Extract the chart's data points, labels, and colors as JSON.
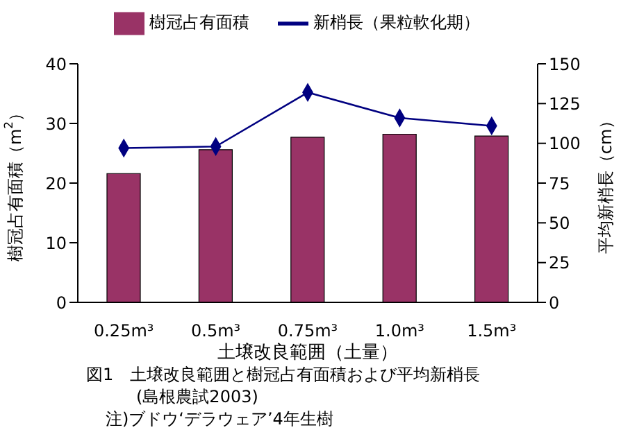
{
  "chart_data": {
    "type": "bar",
    "categories": [
      "0.25m³",
      "0.5m³",
      "0.75m³",
      "1.0m³",
      "1.5m³"
    ],
    "series": [
      {
        "name": "樹冠占有面積",
        "color": "#993366",
        "values": [
          21.6,
          25.6,
          27.7,
          28.2,
          27.9
        ]
      },
      {
        "name": "新梢長（果粒軟化期）",
        "type": "line",
        "axis": "y2",
        "color": "#000080",
        "values": [
          97,
          98,
          132,
          116,
          111
        ]
      }
    ],
    "xlabel": "土壌改良範囲（土量）",
    "ylabel": "樹冠占有面積（m$^{2}$）",
    "y2label": "平均新梢長（cm）",
    "ylim": [
      0,
      40
    ],
    "yticks": [
      0,
      10,
      20,
      30,
      40
    ],
    "y2lim": [
      0,
      150
    ],
    "y2ticks": [
      0,
      25,
      50,
      75,
      100,
      125,
      150
    ],
    "legend": "top",
    "grid": false,
    "marker": "diamond",
    "annotations": [
      "図1　土壌改良範囲と樹冠占有面積および平均新梢長(島根農試2003)",
      "注)ブドウ‘デラウェア’4年生樹"
    ]
  }
}
